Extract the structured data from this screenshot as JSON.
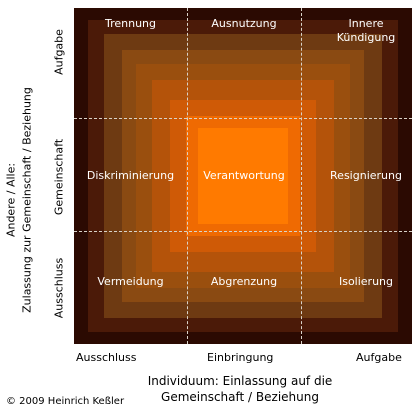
{
  "colors": {
    "layers": [
      "#2b0a02",
      "#4b1a08",
      "#6e3a12",
      "#8a4a12",
      "#9a4f0e",
      "#b4530a",
      "#cf5a06",
      "#ef6a02",
      "#ff7a00"
    ]
  },
  "cells": {
    "trennung": "Trennung",
    "ausnutzung": "Ausnutzung",
    "innere_kuendigung": "Innere\nKündigung",
    "diskriminierung": "Diskriminierung",
    "verantwortung": "Verantwortung",
    "resignierung": "Resignierung",
    "vermeidung": "Vermeidung",
    "abgrenzung": "Abgrenzung",
    "isolierung": "Isolierung"
  },
  "x_axis": {
    "ticks": [
      "Ausschluss",
      "Einbringung",
      "Aufgabe"
    ],
    "title": "Individuum: Einlassung auf die\nGemeinschaft / Beziehung"
  },
  "y_axis": {
    "ticks": [
      "Aufgabe",
      "Gemeinschaft",
      "Ausschluss"
    ],
    "title_line1": "Andere / Alle:",
    "title_line2": "Zulassung zur Gemeinschaft / Beziehung"
  },
  "copyright": "© 2009 Heinrich Keßler"
}
